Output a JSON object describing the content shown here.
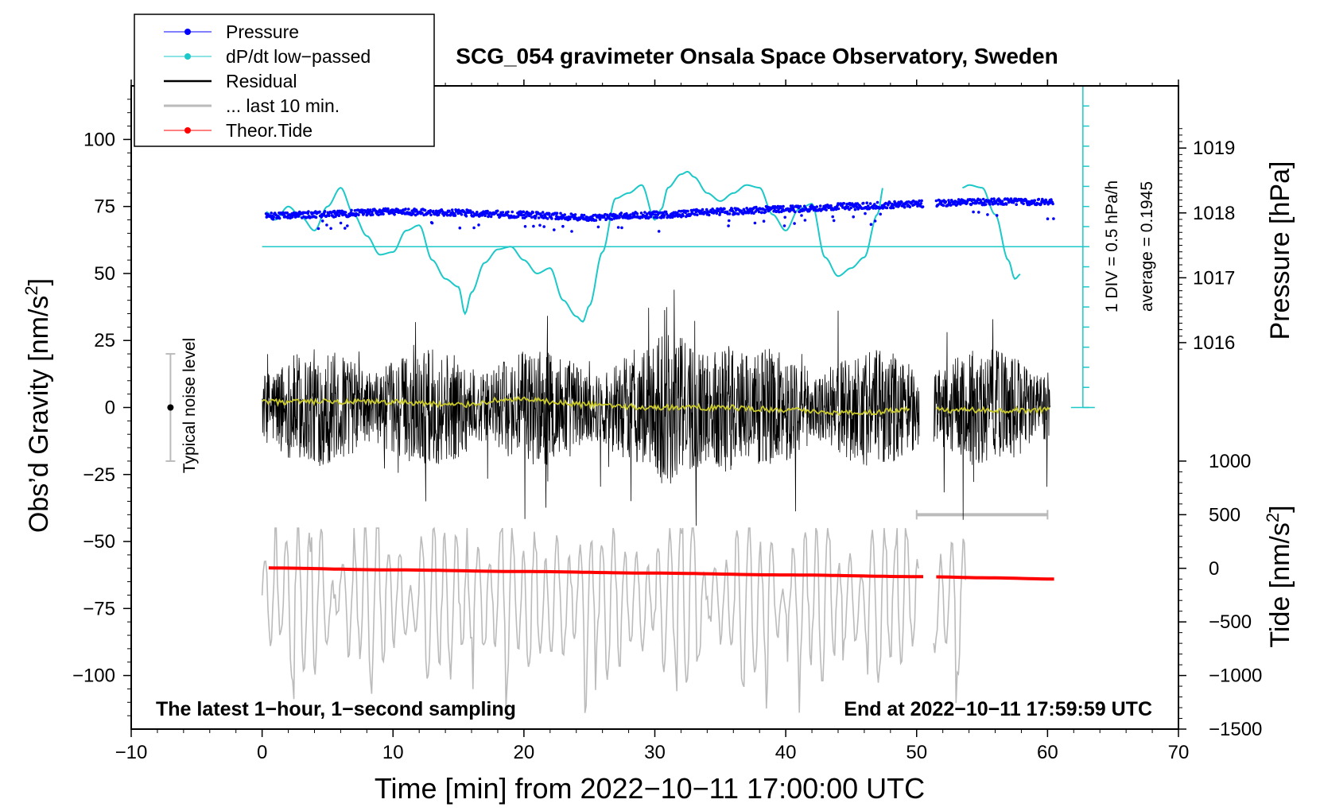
{
  "chart_data": {
    "type": "line",
    "title": "SCG_054 gravimeter Onsala Space Observatory, Sweden",
    "xlabel": "Time [min] from 2022−10−11 17:00:00 UTC",
    "ylabel_left": "Obs’d Gravity [nm/s2]",
    "ylabel_left_main": "Obs’d Gravity [nm/s",
    "ylabel_left_sup": "2",
    "ylabel_left_end": "]",
    "ylabel_right_pressure": "Pressure [hPa]",
    "ylabel_right_tide_main": "Tide [nm/s",
    "ylabel_right_tide_sup": "2",
    "ylabel_right_tide_end": "]",
    "xlim": [
      -10,
      70
    ],
    "ylim_left": [
      -120,
      120
    ],
    "x_ticks": [
      {
        "v": -10,
        "label": "−10"
      },
      {
        "v": 0,
        "label": "0"
      },
      {
        "v": 10,
        "label": "10"
      },
      {
        "v": 20,
        "label": "20"
      },
      {
        "v": 30,
        "label": "30"
      },
      {
        "v": 40,
        "label": "40"
      },
      {
        "v": 50,
        "label": "50"
      },
      {
        "v": 60,
        "label": "60"
      },
      {
        "v": 70,
        "label": "70"
      }
    ],
    "y_left_ticks": [
      {
        "v": 100,
        "label": "100"
      },
      {
        "v": 75,
        "label": "75"
      },
      {
        "v": 50,
        "label": "50"
      },
      {
        "v": 25,
        "label": "25"
      },
      {
        "v": 0,
        "label": "0"
      },
      {
        "v": -25,
        "label": "−25"
      },
      {
        "v": -50,
        "label": "−50"
      },
      {
        "v": -75,
        "label": "−75"
      },
      {
        "v": -100,
        "label": "−100"
      }
    ],
    "pressure_axis": {
      "ticks": [
        {
          "v": 1019,
          "label": "1019"
        },
        {
          "v": 1018,
          "label": "1018"
        },
        {
          "v": 1017,
          "label": "1017"
        },
        {
          "v": 1016,
          "label": "1016"
        }
      ],
      "grav_at_1018": 72.6,
      "grav_per_hPa": 24.2
    },
    "tide_axis": {
      "ticks": [
        {
          "v": 1000,
          "label": "1000"
        },
        {
          "v": 500,
          "label": "500"
        },
        {
          "v": 0,
          "label": "0"
        },
        {
          "v": -500,
          "label": "−500"
        },
        {
          "v": -1000,
          "label": "−1000"
        },
        {
          "v": -1500,
          "label": "−1500"
        }
      ],
      "grav_at_0": -60.0,
      "grav_per_unit": 0.04
    },
    "dpdt_scale": {
      "label_div": "1 DIV = 0.5 hPa/h",
      "label_avg": "average = 0.1945",
      "x": 62.7,
      "y_top": 120,
      "y_bottom": 0,
      "y_zero_line": 60,
      "div": 7.5
    },
    "noise_bar": {
      "label": "Typical noise level",
      "x": -7,
      "center": 0,
      "half": 20
    },
    "last10_bar": {
      "x_start": 50,
      "x_end": 60,
      "y": -40
    },
    "bottom_left_note": "The latest 1−hour, 1−second sampling",
    "bottom_right_note": "End at 2022−10−11 17:59:59 UTC",
    "legend": [
      {
        "label": "Pressure",
        "color": "#0000ff",
        "marker": true
      },
      {
        "label": "dP/dt low−passed",
        "color": "#1cc8c8",
        "marker": true
      },
      {
        "label": "Residual",
        "color": "#000000",
        "marker": false
      },
      {
        "label": "... last 10 min.",
        "color": "#bbbbbb",
        "marker": false
      },
      {
        "label": "Theor.Tide",
        "color": "#ff0000",
        "marker": true
      }
    ],
    "series": [
      {
        "name": "Pressure",
        "unit": "hPa",
        "color": "#0000ff",
        "segments": [
          {
            "x": [
              0.3,
              5,
              10,
              15,
              20,
              25,
              30,
              35,
              40,
              45,
              50.5
            ],
            "y": [
              1017.95,
              1017.98,
              1018.02,
              1018.0,
              1017.97,
              1017.93,
              1017.97,
              1018.02,
              1018.06,
              1018.1,
              1018.14
            ]
          },
          {
            "x": [
              51.5,
              55,
              60.5
            ],
            "y": [
              1018.15,
              1018.17,
              1018.17
            ]
          }
        ]
      },
      {
        "name": "dP/dt low-passed",
        "unit": "grav",
        "color": "#1cc8c8",
        "segments": [
          {
            "x": [
              0.3,
              1,
              2,
              3,
              4,
              5,
              6,
              7,
              8,
              9,
              10,
              11,
              12,
              13,
              14,
              15,
              15.5,
              16,
              17,
              18,
              19,
              20,
              21,
              22,
              23,
              24,
              24.5,
              25,
              26,
              27,
              28,
              29,
              30,
              30.5,
              31,
              32,
              32.5,
              33,
              34,
              35,
              36,
              37,
              38,
              39,
              40,
              41,
              42,
              43,
              44,
              45,
              46,
              47,
              47.5
            ],
            "y": [
              73,
              70,
              75,
              71,
              66,
              75,
              82,
              72,
              64,
              57,
              58,
              66,
              68,
              55,
              48,
              45,
              35,
              43,
              54,
              59,
              60,
              55,
              50,
              52,
              40,
              34,
              32,
              38,
              58,
              78,
              80,
              83,
              70,
              74,
              82,
              87,
              88,
              86,
              80,
              77,
              80,
              83,
              82,
              72,
              66,
              74,
              76,
              56,
              49,
              52,
              56,
              72,
              83
            ]
          },
          {
            "x": [
              53.5,
              54,
              55,
              56,
              57,
              57.5,
              58
            ],
            "y": [
              82,
              83,
              82,
              72,
              55,
              48,
              50
            ]
          }
        ]
      },
      {
        "name": "Residual",
        "unit": "nm/s2",
        "color": "#000000",
        "envelope_note": "approx. ±35 nm/s2 noise, peaks near +52 and −55",
        "segments": [
          {
            "x": [
              0,
              50.2
            ]
          },
          {
            "x": [
              51.3,
              60.2
            ]
          }
        ]
      },
      {
        "name": "Residual smoothed",
        "unit": "nm/s2",
        "color": "#c9c92a",
        "segments": [
          {
            "x": [
              0,
              5,
              10,
              15,
              19,
              25,
              30,
              35,
              40,
              45,
              49.5
            ],
            "y": [
              2,
              2,
              2,
              1,
              3,
              1,
              0,
              0,
              -1,
              -2,
              -1
            ]
          },
          {
            "x": [
              51.5,
              55,
              60.2
            ],
            "y": [
              -1,
              -1,
              -1
            ]
          }
        ]
      },
      {
        "name": "... last 10 min.",
        "unit": "nm/s2",
        "color": "#bbbbbb",
        "range_note": "approx. −110 to −45 nm/s2",
        "segments": [
          {
            "x": [
              0,
              50.2
            ]
          },
          {
            "x": [
              51.3,
              53.8
            ]
          }
        ]
      },
      {
        "name": "Theor.Tide",
        "unit": "nm/s2",
        "color": "#ff0000",
        "segments": [
          {
            "x": [
              0.5,
              10,
              20,
              30,
              40,
              50.5
            ],
            "y": [
              3,
              -15,
              -30,
              -45,
              -62,
              -78
            ]
          },
          {
            "x": [
              51.5,
              55,
              60.5
            ],
            "y": [
              -80,
              -88,
              -100
            ]
          }
        ]
      }
    ]
  }
}
